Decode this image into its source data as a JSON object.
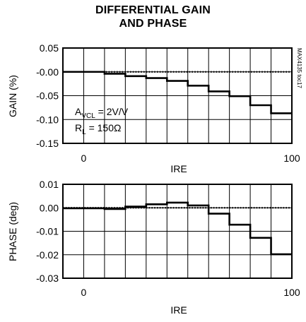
{
  "title_lines": [
    "DIFFERENTIAL GAIN",
    "AND PHASE"
  ],
  "side_code": "MAX4135 toc17",
  "chart_data": [
    {
      "type": "line",
      "step": true,
      "ylabel": "GAIN (%)",
      "xlabel": "IRE",
      "xlim": [
        -10,
        100
      ],
      "ylim": [
        -0.15,
        0.05
      ],
      "x_ticks": [
        {
          "value": 0,
          "label": "0"
        },
        {
          "value": 100,
          "label": "100"
        }
      ],
      "y_ticks": [
        {
          "value": 0.05,
          "label": "0.05"
        },
        {
          "value": 0.0,
          "label": "-0.00"
        },
        {
          "value": -0.05,
          "label": "-0.05"
        },
        {
          "value": -0.1,
          "label": "-0.10"
        },
        {
          "value": -0.15,
          "label": "-0.15"
        }
      ],
      "grid": true,
      "reference_line": {
        "y": 0,
        "style": "dotted"
      },
      "annotations": [
        {
          "main": "A",
          "sub": "VCL",
          "rest": " = 2V/V"
        },
        {
          "main": "R",
          "sub": "L",
          "rest": " = 150Ω"
        }
      ],
      "series": [
        {
          "x": [
            -10,
            10,
            20,
            30,
            40,
            50,
            60,
            70,
            80,
            90,
            100
          ],
          "values": [
            0.0,
            -0.004,
            -0.009,
            -0.013,
            -0.019,
            -0.029,
            -0.041,
            -0.051,
            -0.07,
            -0.087,
            -0.087
          ]
        }
      ]
    },
    {
      "type": "line",
      "step": true,
      "ylabel": "PHASE (deg)",
      "xlabel": "IRE",
      "xlim": [
        -10,
        100
      ],
      "ylim": [
        -0.03,
        0.01
      ],
      "x_ticks": [
        {
          "value": 0,
          "label": "0"
        },
        {
          "value": 100,
          "label": "100"
        }
      ],
      "y_ticks": [
        {
          "value": 0.01,
          "label": "0.01"
        },
        {
          "value": 0.0,
          "label": "0.00"
        },
        {
          "value": -0.01,
          "label": "-0.01"
        },
        {
          "value": -0.02,
          "label": "-0.02"
        },
        {
          "value": -0.03,
          "label": "-0.03"
        }
      ],
      "grid": true,
      "reference_line": {
        "y": 0,
        "style": "dotted"
      },
      "series": [
        {
          "x": [
            -10,
            10,
            20,
            30,
            40,
            50,
            60,
            70,
            80,
            90,
            100
          ],
          "values": [
            -0.0002,
            -0.0005,
            0.0005,
            0.0015,
            0.0022,
            0.001,
            -0.0025,
            -0.0072,
            -0.0128,
            -0.0198,
            -0.0198
          ]
        }
      ]
    }
  ]
}
